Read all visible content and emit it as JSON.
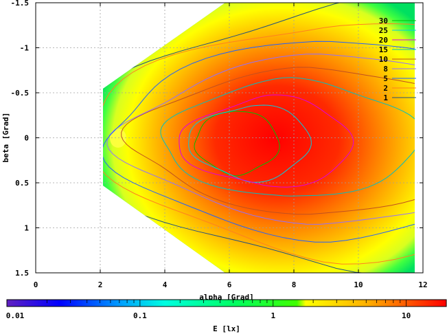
{
  "chart_data": {
    "type": "heatmap",
    "xlabel": "alpha [Grad]",
    "ylabel": "beta [Grad]",
    "xlim": [
      0,
      12
    ],
    "ylim": [
      -1.5,
      1.5
    ],
    "y_inverted": true,
    "grid": true,
    "x_ticks": [
      0,
      2,
      4,
      6,
      8,
      10,
      12
    ],
    "y_ticks": [
      -1.5,
      -1,
      -0.5,
      0,
      0.5,
      1,
      1.5
    ],
    "y_tick_labels": [
      "-1.5",
      "-1",
      "-0.5",
      "0",
      "0.5",
      "1",
      "1.5"
    ],
    "legend_position": "top-right",
    "contours": [
      {
        "name": "30",
        "color": "#00c000",
        "rx": 1.3,
        "ry": 0.36,
        "cx": 6.2,
        "cy": 0.05
      },
      {
        "name": "25",
        "color": "#00cfe0",
        "rx": 1.9,
        "ry": 0.42,
        "cx": 6.6,
        "cy": 0.05
      },
      {
        "name": "20",
        "color": "#e000e0",
        "rx": 2.7,
        "ry": 0.5,
        "cx": 7.1,
        "cy": 0.05
      },
      {
        "name": "15",
        "color": "#00c0c0",
        "rx": 4.0,
        "ry": 0.66,
        "cx": 7.8,
        "cy": 0.02
      },
      {
        "name": "10",
        "color": "#c05020",
        "rx": 5.4,
        "ry": 0.82,
        "cx": 8.3,
        "cy": 0.03
      },
      {
        "name": "8",
        "color": "#9070ff",
        "rx": 6.0,
        "ry": 0.95,
        "cx": 8.6,
        "cy": 0.02
      },
      {
        "name": "5",
        "color": "#2060ff",
        "rx": 6.8,
        "ry": 1.12,
        "cx": 8.9,
        "cy": 0.02
      },
      {
        "name": "2",
        "color": "#ff8020",
        "rx": 7.6,
        "ry": 1.32,
        "cx": 9.2,
        "cy": 0.0
      },
      {
        "name": "1",
        "color": "#205080",
        "rx": 8.4,
        "ry": 1.5,
        "cx": 9.6,
        "cy": 0.0
      }
    ],
    "colorbar": {
      "label": "E [lx]",
      "scale": "log",
      "range": [
        0.01,
        20
      ],
      "tick_labels": [
        {
          "value": 0.01,
          "label": "0.01"
        },
        {
          "value": 0.1,
          "label": "0.1"
        },
        {
          "value": 1,
          "label": "1"
        },
        {
          "value": 10,
          "label": "10"
        }
      ]
    }
  }
}
